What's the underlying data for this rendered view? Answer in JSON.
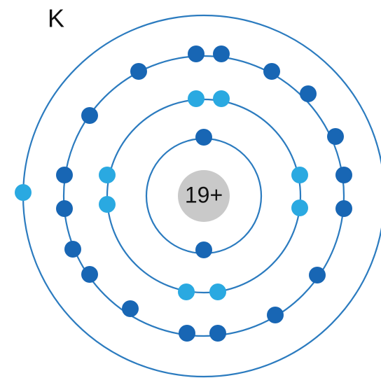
{
  "element_symbol": "K",
  "nucleus_label": "19+"
}
